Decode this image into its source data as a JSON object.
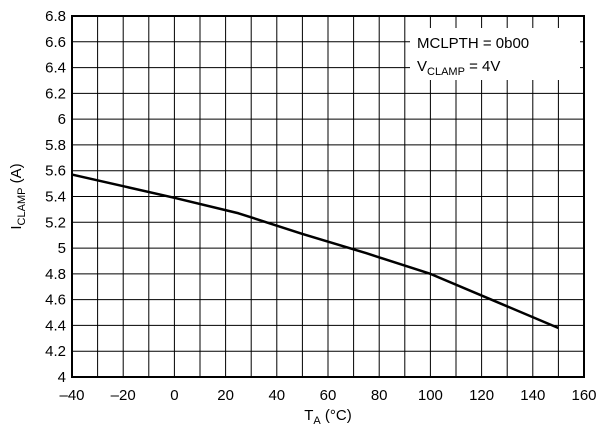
{
  "chart_data": {
    "type": "line",
    "xlabel": {
      "main": "T",
      "sub": "A",
      "suffix": " (°C)"
    },
    "ylabel": {
      "main": "I",
      "sub": "CLAMP",
      "suffix": " (A)"
    },
    "xlim": [
      -40,
      160
    ],
    "ylim": [
      4,
      6.8
    ],
    "x_ticks": [
      -40,
      -20,
      0,
      20,
      40,
      60,
      80,
      100,
      120,
      140,
      160
    ],
    "y_ticks": [
      4,
      4.2,
      4.4,
      4.6,
      4.8,
      5,
      5.2,
      5.4,
      5.6,
      5.8,
      6,
      6.2,
      6.4,
      6.6,
      6.8
    ],
    "x_tick_labels": [
      "–40",
      "–20",
      "0",
      "20",
      "40",
      "60",
      "80",
      "100",
      "120",
      "140",
      "160"
    ],
    "y_tick_labels": [
      "4",
      "4.2",
      "4.4",
      "4.6",
      "4.8",
      "5",
      "5.2",
      "5.4",
      "5.6",
      "5.8",
      "6",
      "6.2",
      "6.4",
      "6.6",
      "6.8"
    ],
    "x_minor_per_major": 2,
    "grid": true,
    "series": [
      {
        "x": [
          -40,
          0,
          25,
          50,
          75,
          100,
          125,
          150
        ],
        "y": [
          5.57,
          5.39,
          5.27,
          5.11,
          4.96,
          4.8,
          4.59,
          4.38
        ],
        "color": "#000000"
      }
    ],
    "annotation": {
      "placement": "top-right",
      "line1": "MCLPTH = 0b00",
      "line2_main": "V",
      "line2_sub": "CLAMP",
      "line2_suffix": " = 4V"
    }
  }
}
